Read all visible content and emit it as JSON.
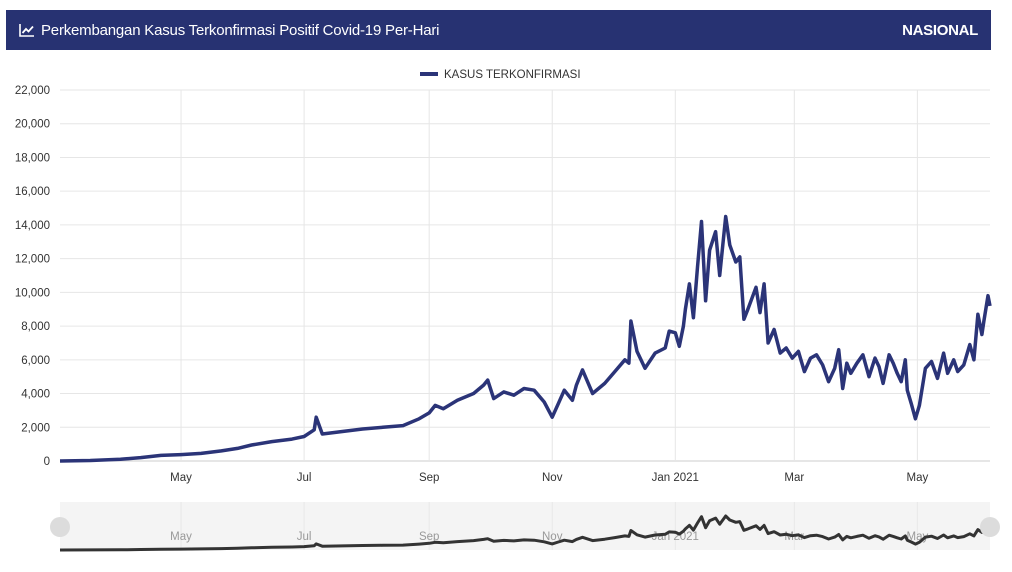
{
  "header": {
    "title": "Perkembangan Kasus Terkonfirmasi Positif Covid-19 Per-Hari",
    "badge": "NASIONAL",
    "icon": "line-chart-icon"
  },
  "colors": {
    "header_bg": "#273272",
    "series": "#2b3478",
    "nav_series": "#333333"
  },
  "chart_data": {
    "type": "line",
    "title": "Perkembangan Kasus Terkonfirmasi Positif Covid-19 Per-Hari",
    "legend": [
      "KASUS TERKONFIRMASI"
    ],
    "legend_position": "top-center",
    "grid": true,
    "xlabel": "",
    "ylabel": "",
    "ylim": [
      0,
      22000
    ],
    "yticks": [
      0,
      2000,
      4000,
      6000,
      8000,
      10000,
      12000,
      14000,
      16000,
      18000,
      20000,
      22000
    ],
    "ytick_labels": [
      "0",
      "2,000",
      "4,000",
      "6,000",
      "8,000",
      "10,000",
      "12,000",
      "14,000",
      "16,000",
      "18,000",
      "20,000",
      "22,000"
    ],
    "xlim_days": [
      0,
      461
    ],
    "xticks": [
      {
        "label": "May",
        "day": 60
      },
      {
        "label": "Jul",
        "day": 121
      },
      {
        "label": "Sep",
        "day": 183
      },
      {
        "label": "Nov",
        "day": 244
      },
      {
        "label": "Jan 2021",
        "day": 305
      },
      {
        "label": "Mar",
        "day": 364
      },
      {
        "label": "May",
        "day": 425
      }
    ],
    "series": [
      {
        "name": "KASUS TERKONFIRMASI",
        "x_unit": "days since 2020-03-02",
        "points": [
          [
            0,
            0
          ],
          [
            15,
            30
          ],
          [
            30,
            100
          ],
          [
            40,
            200
          ],
          [
            50,
            330
          ],
          [
            60,
            380
          ],
          [
            70,
            450
          ],
          [
            80,
            600
          ],
          [
            88,
            750
          ],
          [
            95,
            950
          ],
          [
            105,
            1150
          ],
          [
            115,
            1300
          ],
          [
            121,
            1450
          ],
          [
            126,
            1850
          ],
          [
            127,
            2600
          ],
          [
            130,
            1600
          ],
          [
            140,
            1750
          ],
          [
            150,
            1900
          ],
          [
            160,
            2000
          ],
          [
            170,
            2100
          ],
          [
            178,
            2500
          ],
          [
            183,
            2850
          ],
          [
            186,
            3300
          ],
          [
            190,
            3100
          ],
          [
            197,
            3600
          ],
          [
            205,
            4000
          ],
          [
            210,
            4500
          ],
          [
            212,
            4800
          ],
          [
            215,
            3700
          ],
          [
            220,
            4100
          ],
          [
            225,
            3900
          ],
          [
            230,
            4300
          ],
          [
            235,
            4200
          ],
          [
            240,
            3500
          ],
          [
            244,
            2600
          ],
          [
            247,
            3400
          ],
          [
            250,
            4200
          ],
          [
            254,
            3600
          ],
          [
            256,
            4500
          ],
          [
            259,
            5400
          ],
          [
            264,
            4000
          ],
          [
            270,
            4600
          ],
          [
            275,
            5300
          ],
          [
            280,
            6000
          ],
          [
            282,
            5800
          ],
          [
            283,
            8300
          ],
          [
            286,
            6500
          ],
          [
            290,
            5500
          ],
          [
            295,
            6400
          ],
          [
            300,
            6700
          ],
          [
            302,
            7700
          ],
          [
            305,
            7600
          ],
          [
            307,
            6800
          ],
          [
            309,
            8000
          ],
          [
            310,
            9000
          ],
          [
            312,
            10500
          ],
          [
            314,
            8500
          ],
          [
            316,
            11500
          ],
          [
            318,
            14200
          ],
          [
            320,
            9500
          ],
          [
            322,
            12500
          ],
          [
            325,
            13600
          ],
          [
            327,
            11000
          ],
          [
            330,
            14500
          ],
          [
            332,
            12800
          ],
          [
            335,
            11800
          ],
          [
            337,
            12100
          ],
          [
            339,
            8400
          ],
          [
            341,
            9000
          ],
          [
            345,
            10300
          ],
          [
            347,
            8800
          ],
          [
            349,
            10500
          ],
          [
            351,
            7000
          ],
          [
            354,
            7800
          ],
          [
            357,
            6400
          ],
          [
            360,
            6700
          ],
          [
            363,
            6100
          ],
          [
            366,
            6500
          ],
          [
            369,
            5300
          ],
          [
            372,
            6100
          ],
          [
            375,
            6300
          ],
          [
            378,
            5700
          ],
          [
            381,
            4700
          ],
          [
            384,
            5500
          ],
          [
            386,
            6600
          ],
          [
            388,
            4300
          ],
          [
            390,
            5800
          ],
          [
            392,
            5200
          ],
          [
            395,
            5800
          ],
          [
            398,
            6300
          ],
          [
            401,
            5000
          ],
          [
            404,
            6100
          ],
          [
            406,
            5600
          ],
          [
            408,
            4600
          ],
          [
            411,
            6300
          ],
          [
            413,
            5800
          ],
          [
            415,
            5200
          ],
          [
            417,
            4700
          ],
          [
            419,
            6000
          ],
          [
            420,
            4200
          ],
          [
            422,
            3400
          ],
          [
            424,
            2500
          ],
          [
            426,
            3300
          ],
          [
            429,
            5500
          ],
          [
            432,
            5900
          ],
          [
            435,
            4900
          ],
          [
            438,
            6400
          ],
          [
            440,
            5200
          ],
          [
            443,
            6000
          ],
          [
            445,
            5300
          ],
          [
            448,
            5700
          ],
          [
            451,
            6900
          ],
          [
            453,
            6000
          ],
          [
            455,
            8700
          ],
          [
            457,
            7500
          ],
          [
            458,
            8300
          ],
          [
            460,
            9800
          ],
          [
            461,
            9200
          ]
        ]
      }
    ]
  },
  "navigator": {
    "labels": [
      "May",
      "Jul",
      "Sep",
      "Nov",
      "Jan 2021",
      "Mar",
      "May"
    ]
  }
}
